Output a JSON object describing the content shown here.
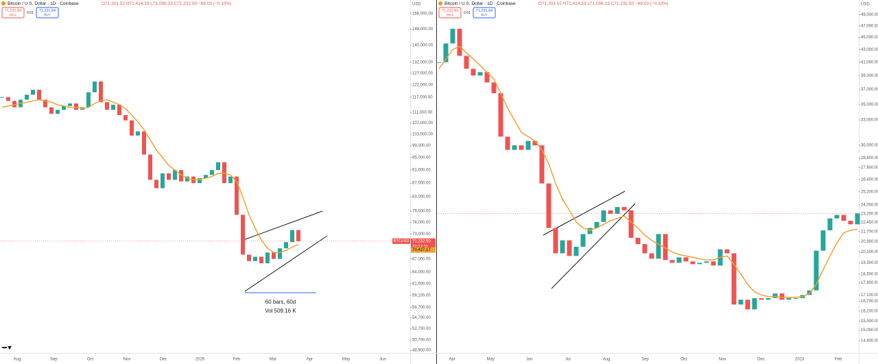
{
  "panels": [
    {
      "title": "Bitcoin / U.S. Dollar · 1D · Coinbase",
      "ohlc": "O71,301.52 H71,414.33 L71,096.23 C71,232.50 −69.03 (−0.10%)",
      "sell_price": "71,231.83",
      "sell": "SELL",
      "spread": "0.01",
      "buy_price": "71,231.84",
      "buy": "BUY",
      "currency": "USD",
      "log_scale": true,
      "ylim": [
        48440,
        163550
      ],
      "yticks": [
        {
          "value": 156000,
          "label": "156,000.00"
        },
        {
          "value": 148000,
          "label": "148,000.00"
        },
        {
          "value": 140000,
          "label": "140,000.00"
        },
        {
          "value": 132000,
          "label": "132,000.00"
        },
        {
          "value": 127000,
          "label": "127,000.00"
        },
        {
          "value": 122000,
          "label": "122,000.00"
        },
        {
          "value": 117000,
          "label": "117,000.00"
        },
        {
          "value": 111000,
          "label": "111,000.00"
        },
        {
          "value": 107000,
          "label": "107,000.00"
        },
        {
          "value": 103000,
          "label": "103,000.00"
        },
        {
          "value": 99000,
          "label": "99,000.00"
        },
        {
          "value": 95000,
          "label": "95,000.00"
        },
        {
          "value": 91000,
          "label": "91,000.00"
        },
        {
          "value": 87000,
          "label": "87,000.00"
        },
        {
          "value": 83000,
          "label": "83,000.00"
        },
        {
          "value": 79000,
          "label": "79,000.00"
        },
        {
          "value": 76000,
          "label": "76,000.00"
        },
        {
          "value": 73000,
          "label": "73,000.00"
        },
        {
          "value": 67000,
          "label": "67,000.00"
        },
        {
          "value": 64000,
          "label": "64,000.00"
        },
        {
          "value": 61500,
          "label": "61,500.00"
        },
        {
          "value": 59100,
          "label": "59,100.00"
        },
        {
          "value": 56700,
          "label": "56,700.00"
        },
        {
          "value": 54700,
          "label": "54,700.00"
        },
        {
          "value": 52700,
          "label": "52,700.00"
        },
        {
          "value": 50700,
          "label": "50,700.00"
        },
        {
          "value": 48900,
          "label": "48,900.00"
        }
      ],
      "months": [
        "Aug",
        "Sep",
        "Oct",
        "Nov",
        "Dec",
        "2026",
        "Feb",
        "Mar",
        "Apr",
        "May",
        "Jun"
      ],
      "closes": [
        117000,
        115500,
        113000,
        116000,
        118000,
        120000,
        116000,
        113000,
        110500,
        112000,
        113500,
        114500,
        112000,
        113000,
        119000,
        123500,
        115000,
        112000,
        114000,
        110000,
        108000,
        102500,
        104000,
        96000,
        88000,
        85500,
        90000,
        88000,
        91000,
        87500,
        89000,
        87000,
        88500,
        89500,
        91000,
        93500,
        87000,
        89000,
        78000,
        68000,
        66500,
        67500,
        66000,
        68500,
        67000,
        69500,
        71000,
        74000,
        71232.5
      ],
      "ma": [
        113000,
        113500,
        114000,
        114500,
        115000,
        115500,
        116000,
        115500,
        115000,
        114000,
        113500,
        113000,
        113000,
        112500,
        113000,
        114500,
        115500,
        116000,
        115000,
        114000,
        112500,
        110000,
        107500,
        104500,
        101000,
        97500,
        95000,
        92500,
        91000,
        89500,
        88500,
        88000,
        88000,
        88500,
        89000,
        90000,
        90000,
        89500,
        87500,
        83000,
        78000,
        74500,
        71500,
        69500,
        68500,
        68500,
        69000,
        69800,
        70427.17
      ],
      "ma_color": "#f0a030",
      "up_color": "#26a69a",
      "down_color": "#ef5350",
      "symbol_tag": "BTCUSD",
      "price_tag": "71,232.50",
      "countdown": "22:12:11",
      "ma_tag": "70,427.17",
      "measure": [
        "60 bars, 60d",
        "Vol 509.16 K"
      ]
    },
    {
      "title": "Bitcoin / U.S. Dollar · 1D · Coinbase",
      "ohlc": "O71,301.52 H71,414.33 L71,096.23 C71,232.50 −69.03 (−0.10%)",
      "sell_price": "71,231.83",
      "sell": "SELL",
      "spread": "0.01",
      "buy_price": "71,231.84",
      "buy": "BUY",
      "currency": "USD",
      "log_scale": true,
      "ylim": [
        13750,
        51800
      ],
      "yticks": [
        {
          "value": 49000,
          "label": "49,000.00"
        },
        {
          "value": 47000,
          "label": "47,000.00"
        },
        {
          "value": 45000,
          "label": "45,000.00"
        },
        {
          "value": 43000,
          "label": "43,000.00"
        },
        {
          "value": 41000,
          "label": "41,000.00"
        },
        {
          "value": 39000,
          "label": "39,000.00"
        },
        {
          "value": 37000,
          "label": "37,000.00"
        },
        {
          "value": 35000,
          "label": "35,000.00"
        },
        {
          "value": 33000,
          "label": "33,000.00"
        },
        {
          "value": 30000,
          "label": "30,000.00"
        },
        {
          "value": 28600,
          "label": "28,600.00"
        },
        {
          "value": 27600,
          "label": "27,600.00"
        },
        {
          "value": 26400,
          "label": "26,400.00"
        },
        {
          "value": 25200,
          "label": "25,200.00"
        },
        {
          "value": 24000,
          "label": "24,000.00"
        },
        {
          "value": 23200,
          "label": "23,200.00"
        },
        {
          "value": 22450,
          "label": "22,450.00"
        },
        {
          "value": 21700,
          "label": "21,700.00"
        },
        {
          "value": 20900,
          "label": "20,900.00"
        },
        {
          "value": 20100,
          "label": "20,100.00"
        },
        {
          "value": 19300,
          "label": "19,300.00"
        },
        {
          "value": 18500,
          "label": "18,500.00"
        },
        {
          "value": 17900,
          "label": "17,900.00"
        },
        {
          "value": 17100,
          "label": "17,100.00"
        },
        {
          "value": 16700,
          "label": "16,700.00"
        },
        {
          "value": 16100,
          "label": "16,100.00"
        },
        {
          "value": 15500,
          "label": "15,500.00"
        },
        {
          "value": 15000,
          "label": "15,000.00"
        },
        {
          "value": 14400,
          "label": "14,400.00"
        }
      ],
      "months": [
        "Apr",
        "May",
        "Jun",
        "Jul",
        "Aug",
        "Sep",
        "Oct",
        "Nov",
        "Dec",
        "2023",
        "Feb"
      ],
      "closes": [
        41000,
        44000,
        46500,
        42000,
        40000,
        39000,
        39500,
        38000,
        36500,
        31000,
        29500,
        30000,
        29500,
        30500,
        30000,
        26000,
        22000,
        20000,
        21000,
        19800,
        20500,
        21500,
        22000,
        22500,
        23500,
        23200,
        23800,
        23500,
        21200,
        20700,
        20000,
        19600,
        21500,
        19500,
        19300,
        19700,
        19400,
        19200,
        19300,
        19400,
        19100,
        20300,
        20000,
        16500,
        16800,
        16200,
        16900,
        16800,
        16900,
        17200,
        16800,
        16900,
        16900,
        17100,
        17400,
        20200,
        21800,
        22800,
        23100,
        22600,
        22300,
        23232
      ],
      "ma": [
        40000,
        41500,
        43000,
        43500,
        42500,
        41500,
        40500,
        39500,
        38500,
        36500,
        34500,
        33000,
        31500,
        31000,
        30500,
        29500,
        28000,
        26000,
        24500,
        23500,
        22500,
        22000,
        21800,
        22000,
        22300,
        22600,
        22800,
        23000,
        22500,
        22000,
        21400,
        21000,
        20700,
        20400,
        20100,
        19900,
        19800,
        19700,
        19600,
        19500,
        19500,
        19700,
        19800,
        19200,
        18500,
        17800,
        17300,
        17100,
        17000,
        17000,
        16950,
        16950,
        16950,
        17000,
        17200,
        17800,
        18800,
        19800,
        20800,
        21600,
        21800,
        21900
      ],
      "ma_color": "#f0a030",
      "up_color": "#26a69a",
      "down_color": "#ef5350"
    }
  ]
}
